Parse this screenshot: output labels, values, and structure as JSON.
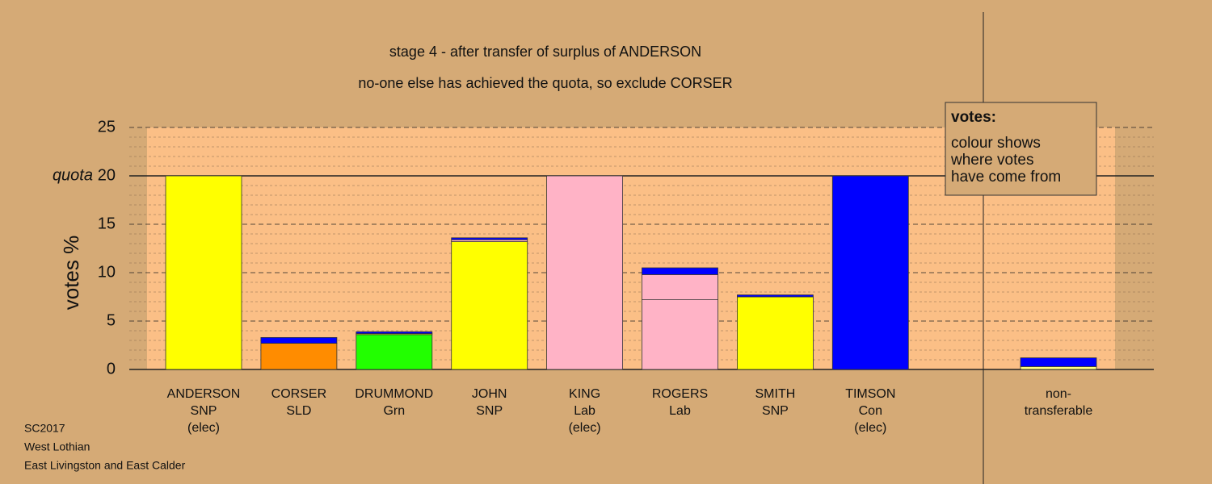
{
  "chart_data": {
    "type": "stacked-bar",
    "title": "stage 4 - after transfer of surplus of ANDERSON",
    "subtitle": "no-one else has achieved the quota, so exclude CORSER",
    "y_label": "votes %",
    "ylim": [
      0,
      25
    ],
    "yticks": [
      0,
      5,
      10,
      15,
      20,
      25
    ],
    "minor_yticks": [
      1,
      2,
      3,
      4,
      6,
      7,
      8,
      9,
      11,
      12,
      13,
      14,
      16,
      17,
      18,
      19,
      21,
      22,
      23,
      24
    ],
    "quota": 20,
    "quota_label": "quota",
    "bars": [
      {
        "label": [
          "ANDERSON",
          "SNP",
          "(elec)"
        ],
        "segments": [
          {
            "color": "#ffff00",
            "value": 20
          }
        ]
      },
      {
        "label": [
          "CORSER",
          "SLD"
        ],
        "segments": [
          {
            "color": "#ff8c00",
            "value": 2.7
          },
          {
            "color": "#0000ff",
            "value": 0.6
          }
        ]
      },
      {
        "label": [
          "DRUMMOND",
          "Grn"
        ],
        "segments": [
          {
            "color": "#22ff00",
            "value": 3.6
          },
          {
            "color": "#ffff00",
            "value": 0.1
          },
          {
            "color": "#0000ff",
            "value": 0.2
          }
        ]
      },
      {
        "label": [
          "JOHN",
          "SNP"
        ],
        "segments": [
          {
            "color": "#ffff00",
            "value": 13.2
          },
          {
            "color": "#ffb3c6",
            "value": 0.2
          },
          {
            "color": "#0000ff",
            "value": 0.2
          }
        ]
      },
      {
        "label": [
          "KING",
          "Lab",
          "(elec)"
        ],
        "segments": [
          {
            "color": "#ffb3c6",
            "value": 20
          }
        ]
      },
      {
        "label": [
          "ROGERS",
          "Lab"
        ],
        "segments": [
          {
            "color": "#ffb3c6",
            "value": 7.2
          },
          {
            "color": "#ffb3c6",
            "value": 2.6
          },
          {
            "color": "#0000ff",
            "value": 0.7
          }
        ]
      },
      {
        "label": [
          "SMITH",
          "SNP"
        ],
        "segments": [
          {
            "color": "#ffff00",
            "value": 7.5
          },
          {
            "color": "#0000ff",
            "value": 0.2
          }
        ]
      },
      {
        "label": [
          "TIMSON",
          "Con",
          "(elec)"
        ],
        "segments": [
          {
            "color": "#0000ff",
            "value": 20
          }
        ]
      },
      {
        "label": [
          "non-",
          "transferable"
        ],
        "segments": [
          {
            "color": "#ffff80",
            "value": 0.3
          },
          {
            "color": "#0000ff",
            "value": 0.9
          }
        ]
      }
    ],
    "legend_box": [
      "votes:",
      "colour shows",
      "where votes",
      "have come from"
    ],
    "footer": [
      "SC2017",
      "West Lothian",
      "East Livingston and East Calder"
    ]
  }
}
